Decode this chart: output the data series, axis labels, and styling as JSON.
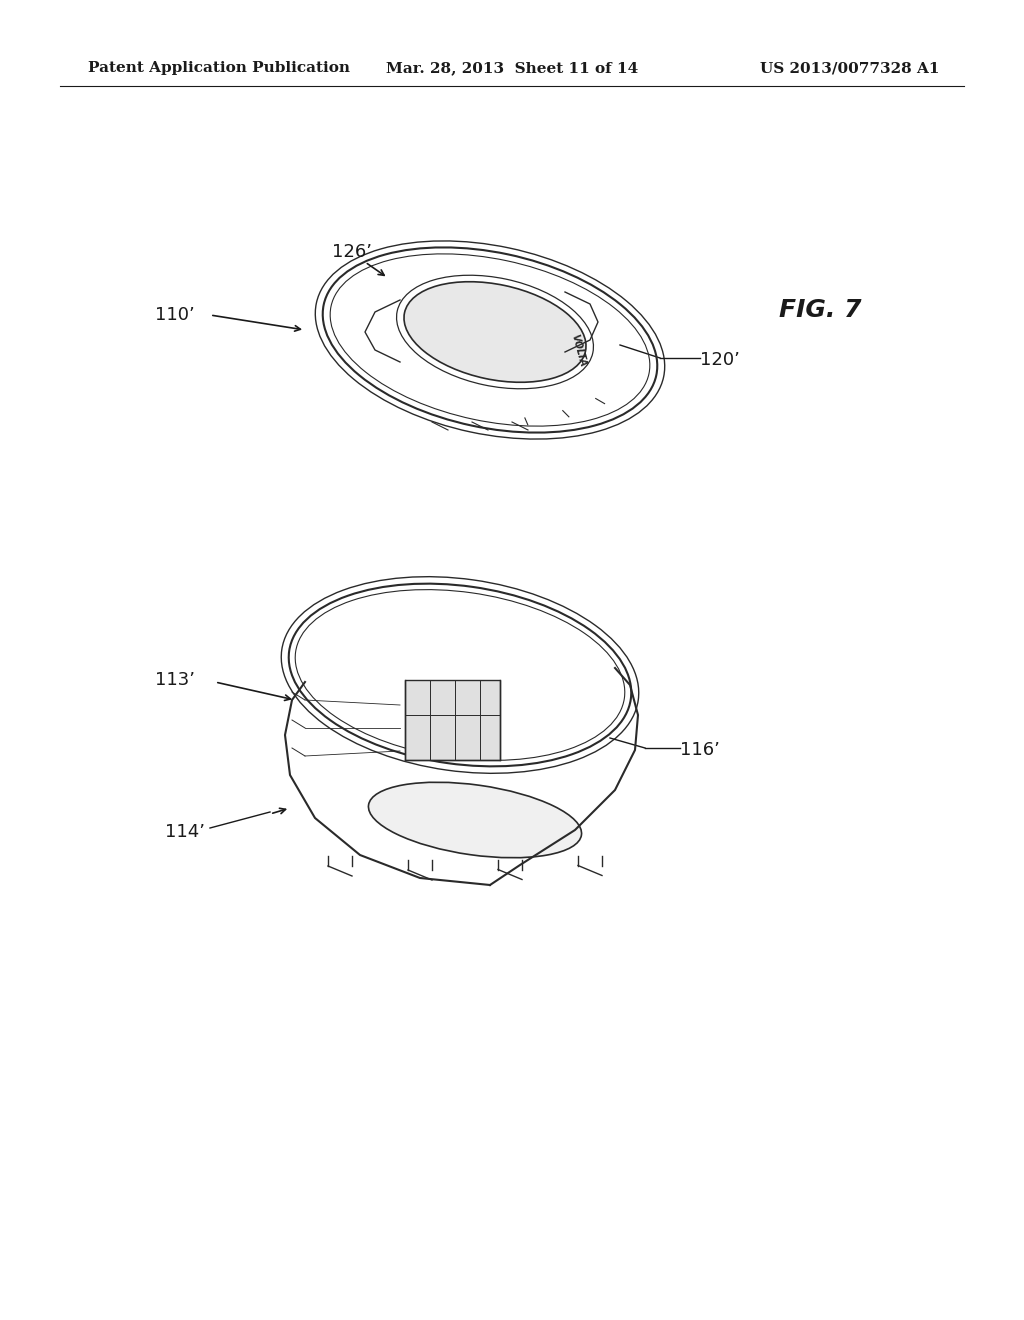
{
  "background_color": "#ffffff",
  "header_left": "Patent Application Publication",
  "header_center": "Mar. 28, 2013  Sheet 11 of 14",
  "header_right": "US 2013/0077328 A1",
  "fig_label": "FIG. 7",
  "labels": {
    "110_prime": "110’",
    "126_prime": "126’",
    "120_prime": "120’",
    "113_prime": "113’",
    "114_prime": "114’",
    "116_prime": "116’"
  },
  "header_fontsize": 11,
  "label_fontsize": 13,
  "fig_label_fontsize": 18,
  "line_color": "#2a2a2a",
  "text_color": "#1a1a1a"
}
